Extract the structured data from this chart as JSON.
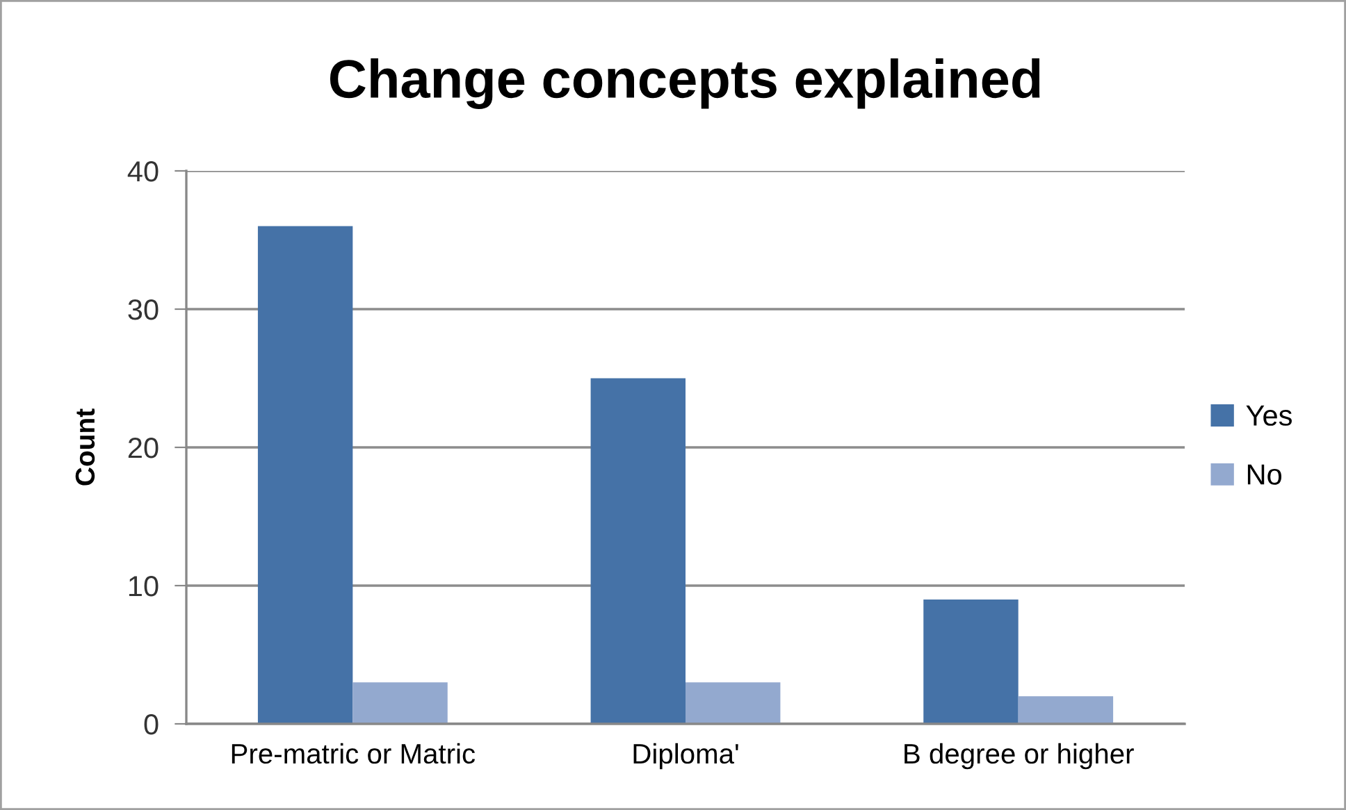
{
  "chart_data": {
    "type": "bar",
    "title": "Change concepts explained",
    "ylabel": "Count",
    "categories": [
      "Pre-matric or Matric",
      "Diploma'",
      "B degree or higher"
    ],
    "series": [
      {
        "name": "Yes",
        "color": "#4572a7",
        "values": [
          36,
          25,
          9
        ]
      },
      {
        "name": "No",
        "color": "#93a9cf",
        "values": [
          3,
          3,
          2
        ]
      }
    ],
    "ylim": [
      0,
      40
    ],
    "yticks": [
      0,
      10,
      20,
      30,
      40
    ],
    "grid": "y",
    "legend": "right"
  }
}
